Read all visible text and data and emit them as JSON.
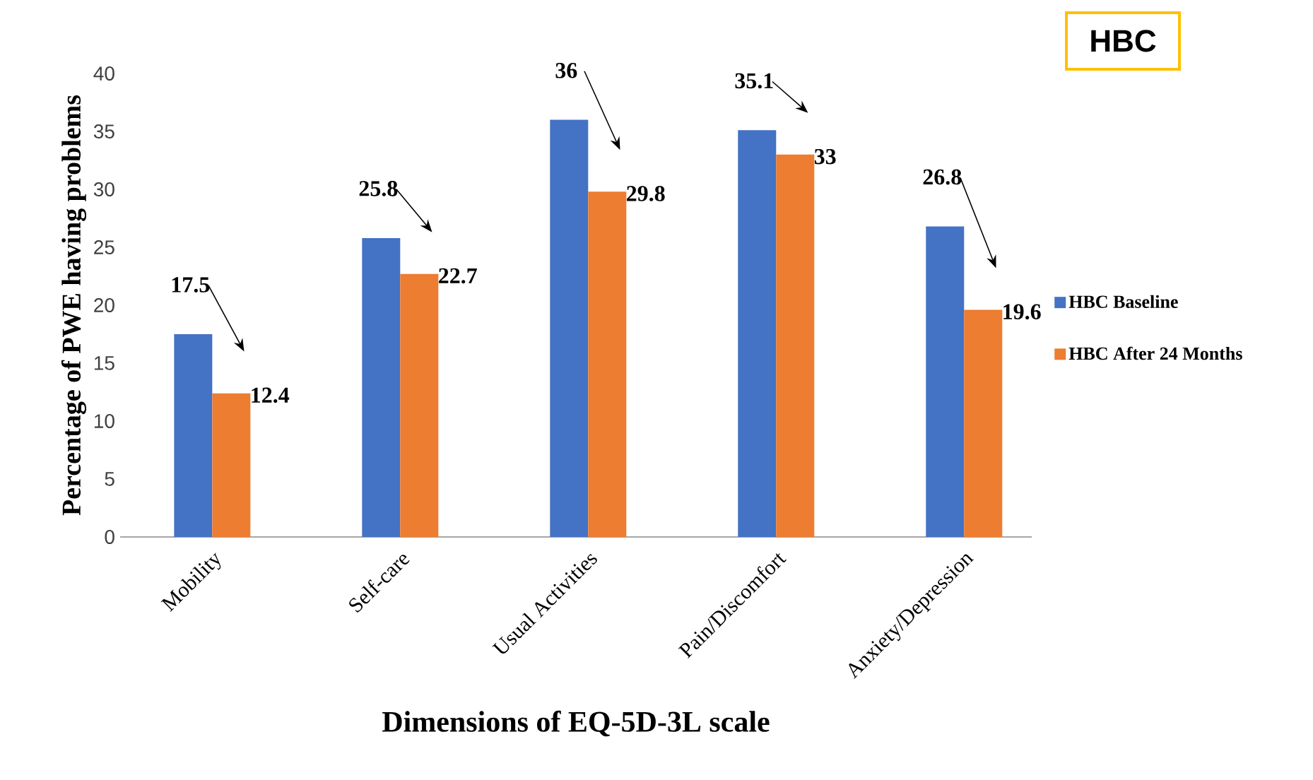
{
  "chart_data": {
    "type": "bar",
    "title": "HBC",
    "xlabel": "Dimensions of EQ-5D-3L scale",
    "ylabel": "Percentage of PWE having problems",
    "categories": [
      "Mobility",
      "Self-care",
      "Usual Activities",
      "Pain/Discomfort",
      "Anxiety/Depression"
    ],
    "series": [
      {
        "name": "HBC Baseline",
        "color": "#4472c4",
        "values": [
          17.5,
          25.8,
          36,
          35.1,
          26.8
        ]
      },
      {
        "name": "HBC After 24 Months",
        "color": "#ed7d31",
        "values": [
          12.4,
          22.7,
          29.8,
          33,
          19.6
        ]
      }
    ],
    "ylim": [
      0,
      40
    ],
    "yticks": [
      0,
      5,
      10,
      15,
      20,
      25,
      30,
      35,
      40
    ],
    "data_labels": true,
    "legend": "right"
  }
}
